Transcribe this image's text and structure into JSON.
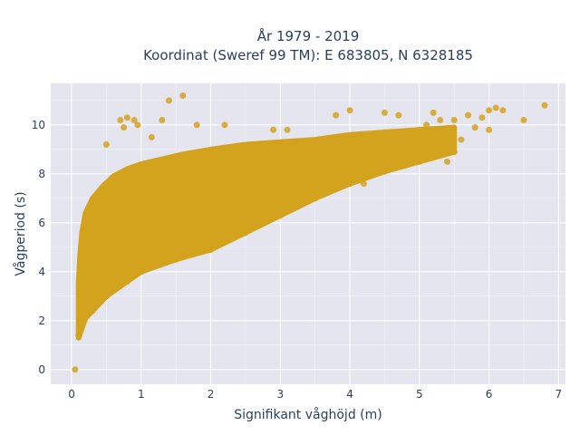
{
  "chart_data": {
    "type": "scatter",
    "title_line1": "År 1979 - 2019",
    "title_line2": "Koordinat (Sweref 99 TM): E 683805, N 6328185",
    "xlabel": "Signifikant våghöjd (m)",
    "ylabel": "Vågperiod (s)",
    "xlim": [
      -0.3,
      7.1
    ],
    "ylim": [
      -0.6,
      11.7
    ],
    "x_ticks": [
      0,
      1,
      2,
      3,
      4,
      5,
      6,
      7
    ],
    "y_ticks": [
      0,
      2,
      4,
      6,
      8,
      10
    ],
    "grid": true,
    "legend": "none",
    "colors": {
      "marker": "#d4a31e",
      "plot_background": "#e5e5f0",
      "grid": "#ffffff"
    },
    "series": [
      {
        "points": [
          [
            0.05,
            0.0
          ],
          [
            0.1,
            1.4
          ],
          [
            0.12,
            2.1
          ],
          [
            0.15,
            3.1
          ],
          [
            0.2,
            4.2
          ],
          [
            0.25,
            5.2
          ],
          [
            0.3,
            5.9
          ],
          [
            0.4,
            6.6
          ],
          [
            0.5,
            7.2
          ],
          [
            0.6,
            7.6
          ],
          [
            0.8,
            7.9
          ],
          [
            1.0,
            8.2
          ],
          [
            1.2,
            8.4
          ],
          [
            1.5,
            8.6
          ],
          [
            2.0,
            8.9
          ],
          [
            2.5,
            9.1
          ],
          [
            3.0,
            9.2
          ],
          [
            3.5,
            9.3
          ],
          [
            4.0,
            9.5
          ],
          [
            4.5,
            9.7
          ],
          [
            5.0,
            9.8
          ],
          [
            0.3,
            2.4
          ],
          [
            0.5,
            3.0
          ],
          [
            0.8,
            3.6
          ],
          [
            1.0,
            4.0
          ],
          [
            1.5,
            4.5
          ],
          [
            2.0,
            4.9
          ],
          [
            2.5,
            5.6
          ],
          [
            3.0,
            6.3
          ],
          [
            3.5,
            7.0
          ],
          [
            4.0,
            7.6
          ],
          [
            4.5,
            8.1
          ],
          [
            5.0,
            8.5
          ],
          [
            5.5,
            8.9
          ],
          [
            0.7,
            10.2
          ],
          [
            0.8,
            10.3
          ],
          [
            0.9,
            10.2
          ],
          [
            0.75,
            9.9
          ],
          [
            0.5,
            9.2
          ],
          [
            0.95,
            10.0
          ],
          [
            1.4,
            11.0
          ],
          [
            1.6,
            11.2
          ],
          [
            1.3,
            10.2
          ],
          [
            1.15,
            9.5
          ],
          [
            1.8,
            10.0
          ],
          [
            2.2,
            10.0
          ],
          [
            2.9,
            9.8
          ],
          [
            3.1,
            9.8
          ],
          [
            3.8,
            10.4
          ],
          [
            4.0,
            10.6
          ],
          [
            4.5,
            10.5
          ],
          [
            4.7,
            10.4
          ],
          [
            5.1,
            10.0
          ],
          [
            5.2,
            10.5
          ],
          [
            5.3,
            10.2
          ],
          [
            5.5,
            10.2
          ],
          [
            5.7,
            10.4
          ],
          [
            5.9,
            10.3
          ],
          [
            6.0,
            10.6
          ],
          [
            6.1,
            10.7
          ],
          [
            6.2,
            10.6
          ],
          [
            6.5,
            10.2
          ],
          [
            6.8,
            10.8
          ],
          [
            6.0,
            9.8
          ],
          [
            5.8,
            9.9
          ],
          [
            5.6,
            9.4
          ],
          [
            5.4,
            8.5
          ],
          [
            5.0,
            9.0
          ],
          [
            4.8,
            9.7
          ],
          [
            4.3,
            8.7
          ],
          [
            4.2,
            7.6
          ]
        ]
      }
    ]
  }
}
